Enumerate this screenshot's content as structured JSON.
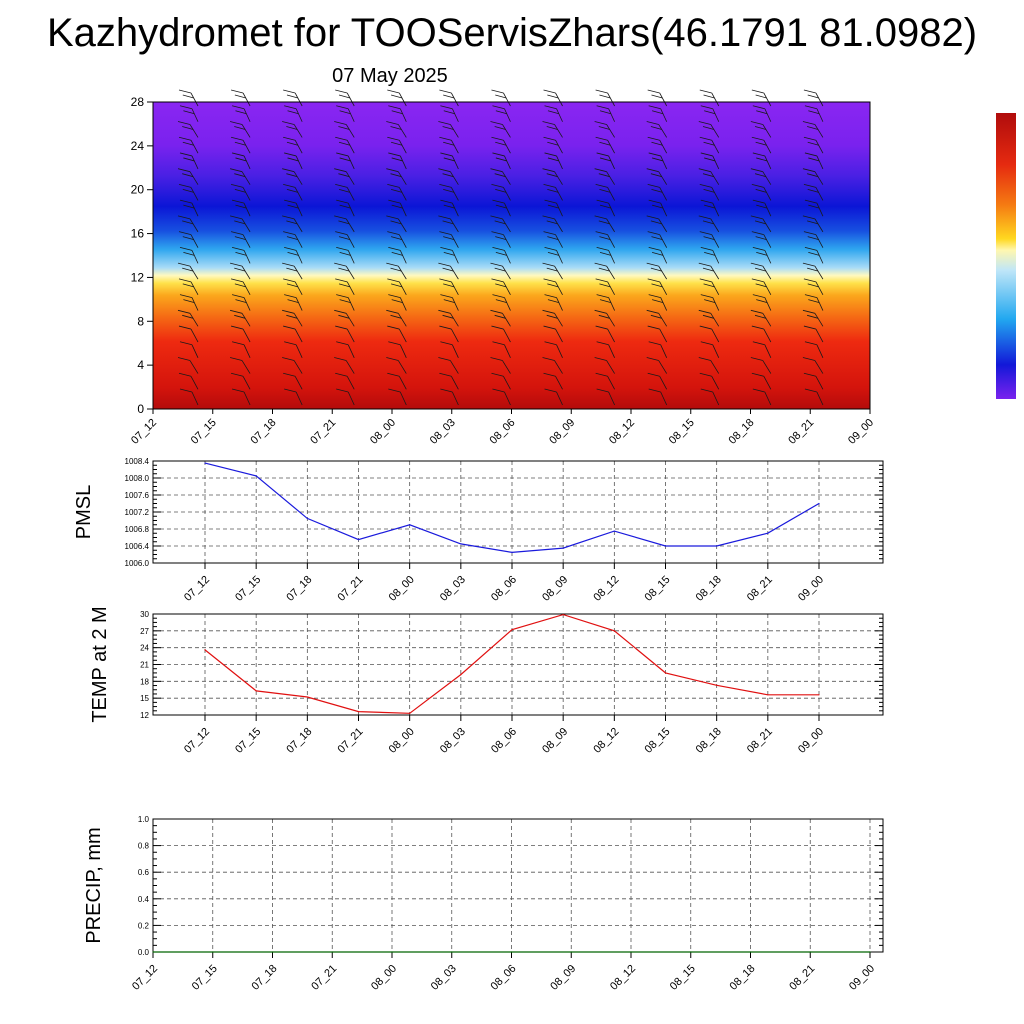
{
  "title": "Kazhydromet for TOOServisZhars(46.1791 81.0982)",
  "subtitle": "07 May 2025",
  "colors": {
    "pmsl_line": "#1a1adc",
    "temp_line": "#e01010",
    "precip_line": "#006400",
    "grid": "#555555"
  },
  "chart_data": [
    {
      "id": "cross-section",
      "type": "heatmap",
      "x_tick_labels": [
        "07_12",
        "07_15",
        "07_18",
        "07_21",
        "08_00",
        "08_03",
        "08_06",
        "08_09",
        "08_12",
        "08_15",
        "08_18",
        "08_21",
        "09_00"
      ],
      "y_tick_labels": [
        "0",
        "4",
        "8",
        "12",
        "16",
        "20",
        "24",
        "28"
      ],
      "ylim": [
        0,
        28
      ],
      "color_bands_bottom_to_top": [
        "dark-red",
        "red",
        "orange",
        "yellow",
        "light-blue",
        "blue",
        "purple"
      ],
      "overlay": "wind barbs"
    },
    {
      "id": "pmsl",
      "type": "line",
      "ylabel": "PMSL",
      "x": [
        "07_12",
        "07_15",
        "07_18",
        "07_21",
        "08_00",
        "08_03",
        "08_06",
        "08_09",
        "08_12",
        "08_15",
        "08_18",
        "08_21",
        "09_00"
      ],
      "values": [
        1008.35,
        1008.05,
        1007.05,
        1006.55,
        1006.9,
        1006.45,
        1006.25,
        1006.35,
        1006.75,
        1006.4,
        1006.4,
        1006.7,
        1007.4
      ],
      "y_tick_labels": [
        "1006.0",
        "1006.4",
        "1006.8",
        "1007.2",
        "1007.6",
        "1008.0",
        "1008.4"
      ],
      "ylim": [
        1006.0,
        1008.4
      ],
      "grid": true
    },
    {
      "id": "temp",
      "type": "line",
      "ylabel": "TEMP at 2 M",
      "x": [
        "07_12",
        "07_15",
        "07_18",
        "07_21",
        "08_00",
        "08_03",
        "08_06",
        "08_09",
        "08_12",
        "08_15",
        "08_18",
        "08_21",
        "09_00"
      ],
      "values": [
        23.6,
        16.3,
        15.2,
        12.6,
        12.3,
        19.2,
        27.2,
        29.9,
        27.0,
        19.5,
        17.3,
        15.6,
        15.6
      ],
      "y_tick_labels": [
        "12",
        "15",
        "18",
        "21",
        "24",
        "27",
        "30"
      ],
      "ylim": [
        12,
        30
      ],
      "grid": true
    },
    {
      "id": "precip",
      "type": "line",
      "ylabel": "PRECIP, mm",
      "x": [
        "07_12",
        "07_15",
        "07_18",
        "07_21",
        "08_00",
        "08_03",
        "08_06",
        "08_09",
        "08_12",
        "08_15",
        "08_18",
        "08_21",
        "09_00"
      ],
      "values": [
        0,
        0,
        0,
        0,
        0,
        0,
        0,
        0,
        0,
        0,
        0,
        0,
        0
      ],
      "y_tick_labels": [
        "0.0",
        "0.2",
        "0.4",
        "0.6",
        "0.8",
        "1.0"
      ],
      "ylim": [
        0,
        1.0
      ],
      "grid": true
    }
  ]
}
